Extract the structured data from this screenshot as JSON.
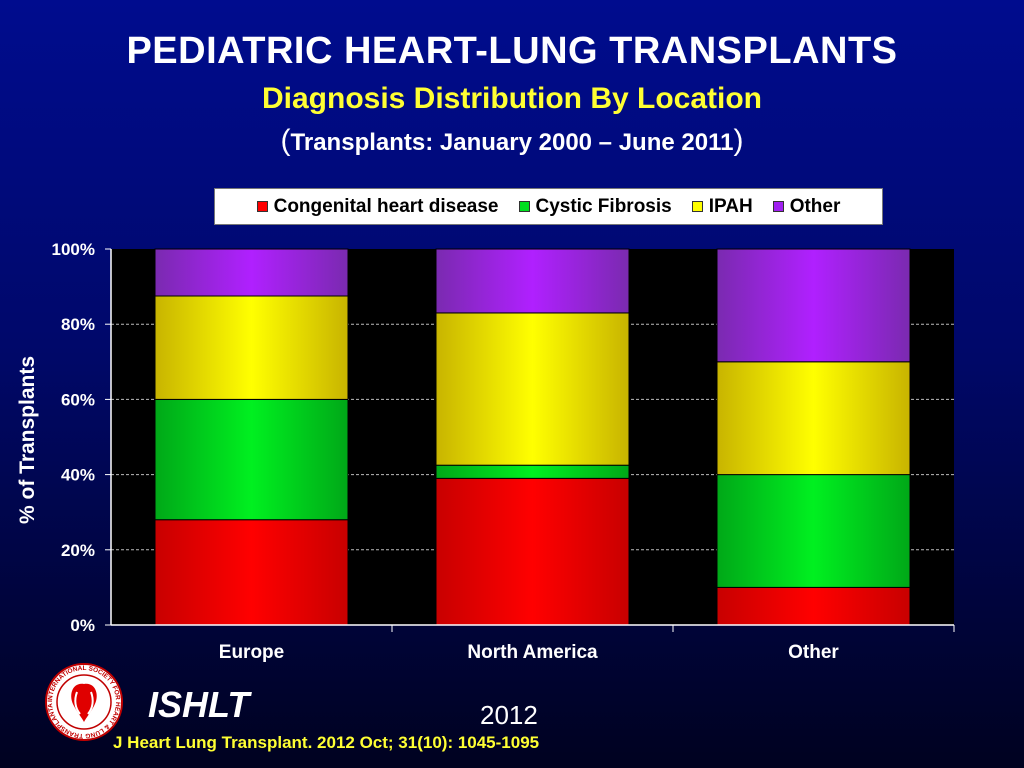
{
  "header": {
    "title": "PEDIATRIC HEART-LUNG TRANSPLANTS",
    "subtitle": "Diagnosis Distribution By Location",
    "subtitle2_open": "(",
    "subtitle2_text": "Transplants: January 2000 – June 2011",
    "subtitle2_close": ")"
  },
  "footer": {
    "brand": "ISHLT",
    "year": "2012",
    "citation": "J Heart Lung Transplant.  2012 Oct; 31(10): 1045-1095",
    "logo_text": "INTERNATIONAL SOCIETY FOR HEART & LUNG TRANSPLANTATION"
  },
  "colors": {
    "congenital": "#ff0000",
    "cystic": "#00e020",
    "ipah": "#ffff00",
    "other": "#a020f0"
  },
  "chart_data": {
    "type": "bar",
    "stacked": true,
    "categories": [
      "Europe",
      "North America",
      "Other"
    ],
    "series": [
      {
        "name": "Congenital heart disease",
        "color": "#ff0000",
        "values": [
          28,
          39,
          10
        ]
      },
      {
        "name": "Cystic Fibrosis",
        "color": "#00e020",
        "values": [
          32,
          3.5,
          30
        ]
      },
      {
        "name": "IPAH",
        "color": "#ffff00",
        "values": [
          27.5,
          40.5,
          30
        ]
      },
      {
        "name": "Other",
        "color": "#a020f0",
        "values": [
          12.5,
          17,
          30
        ]
      }
    ],
    "ylabel": "% of Transplants",
    "yticks": [
      "0%",
      "20%",
      "40%",
      "60%",
      "80%",
      "100%"
    ],
    "ylim": [
      0,
      100
    ],
    "legend": "top",
    "grid": true
  }
}
